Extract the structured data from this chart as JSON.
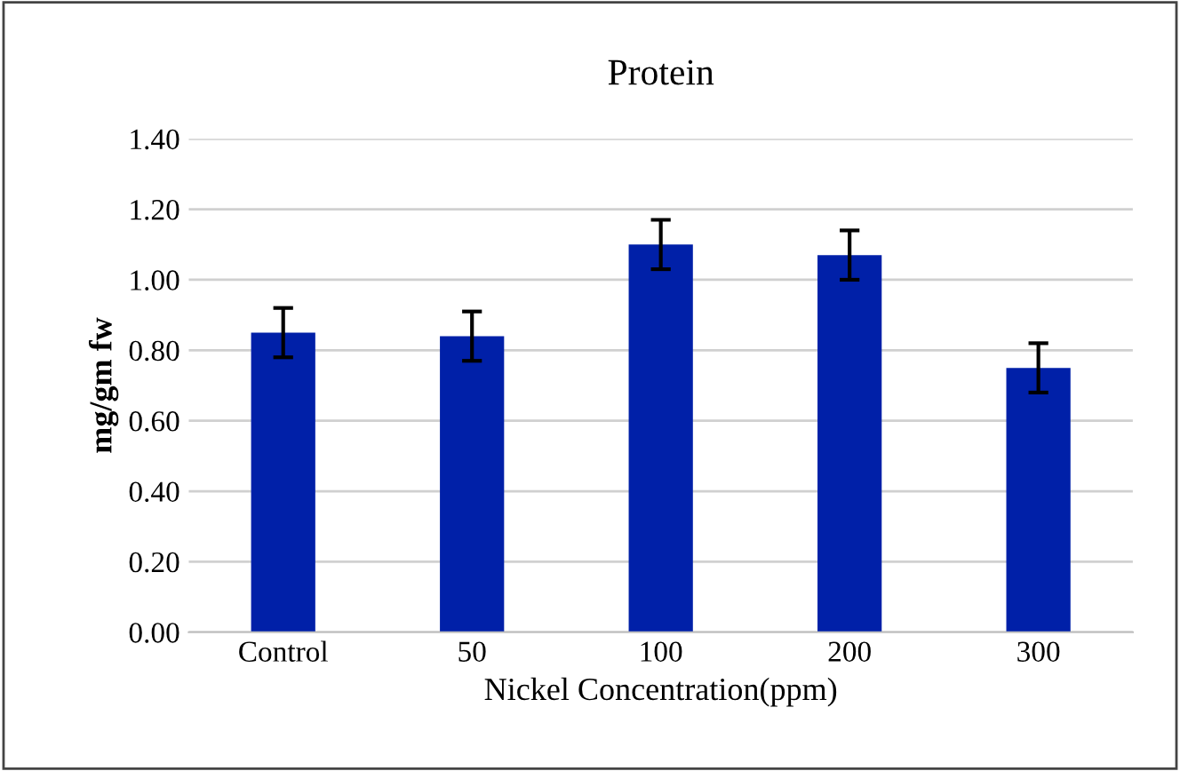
{
  "chart_data": {
    "type": "bar",
    "title": "Protein",
    "xlabel": "Nickel Concentration(ppm)",
    "ylabel": "mg/gm fw",
    "categories": [
      "Control",
      "50",
      "100",
      "200",
      "300"
    ],
    "values": [
      0.85,
      0.84,
      1.1,
      1.07,
      0.75
    ],
    "errors": [
      0.07,
      0.07,
      0.07,
      0.07,
      0.07
    ],
    "color": "#0020a8",
    "ylim": [
      0,
      1.4
    ],
    "yticks": [
      {
        "value": 0,
        "label": "0.00"
      },
      {
        "value": 0.2,
        "label": "0.20"
      },
      {
        "value": 0.4,
        "label": "0.40"
      },
      {
        "value": 0.6,
        "label": "0.60"
      },
      {
        "value": 0.8,
        "label": "0.80"
      },
      {
        "value": 1.0,
        "label": "1.00"
      },
      {
        "value": 1.2,
        "label": "1.20"
      },
      {
        "value": 1.4,
        "label": "1.40"
      }
    ],
    "grid": "y",
    "legend": false
  }
}
